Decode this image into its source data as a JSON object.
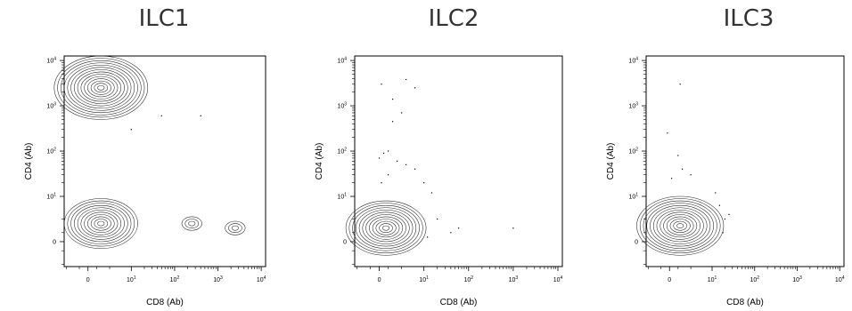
{
  "panels": [
    {
      "title": "ILC1",
      "xlabel": "CD8 (Ab)",
      "ylabel": "CD4 (Ab)"
    },
    {
      "title": "ILC2",
      "xlabel": "CD8 (Ab)",
      "ylabel": "CD4 (Ab)"
    },
    {
      "title": "ILC3",
      "xlabel": "CD8 (Ab)",
      "ylabel": "CD4 (Ab)"
    }
  ],
  "chart_data": [
    {
      "type": "contour",
      "title": "ILC1",
      "xlabel": "CD8 (Ab)",
      "ylabel": "CD4 (Ab)",
      "x_scale": "biexponential",
      "y_scale": "biexponential",
      "x_ticks": [
        "0",
        "10^1",
        "10^2",
        "10^3",
        "10^4"
      ],
      "y_ticks": [
        "0",
        "10^1",
        "10^2",
        "10^3",
        "10^4"
      ],
      "populations": [
        {
          "x": 3,
          "y": 2500,
          "rings": 14
        },
        {
          "x": 3,
          "y": 4,
          "rings": 11
        },
        {
          "x": 250,
          "y": 4,
          "rings": 3
        },
        {
          "x": 2500,
          "y": 3,
          "rings": 3
        }
      ],
      "outlier_points": [
        {
          "x": 10,
          "y": 300
        },
        {
          "x": 50,
          "y": 600
        },
        {
          "x": 400,
          "y": 600
        }
      ]
    },
    {
      "type": "contour",
      "title": "ILC2",
      "xlabel": "CD8 (Ab)",
      "ylabel": "CD4 (Ab)",
      "x_scale": "biexponential",
      "y_scale": "biexponential",
      "x_ticks": [
        "0",
        "10^1",
        "10^2",
        "10^3",
        "10^4"
      ],
      "y_ticks": [
        "0",
        "10^1",
        "10^2",
        "10^3",
        "10^4"
      ],
      "populations": [
        {
          "x": 1.5,
          "y": 3,
          "rings": 12
        }
      ],
      "outlier_points": [
        {
          "x": 0.5,
          "y": 3000
        },
        {
          "x": 6,
          "y": 3800
        },
        {
          "x": 8,
          "y": 2500
        },
        {
          "x": 3,
          "y": 1400
        },
        {
          "x": 5,
          "y": 700
        },
        {
          "x": 3,
          "y": 450
        },
        {
          "x": 0,
          "y": 70
        },
        {
          "x": 1,
          "y": 90
        },
        {
          "x": 2,
          "y": 100
        },
        {
          "x": 4,
          "y": 60
        },
        {
          "x": 6,
          "y": 50
        },
        {
          "x": 8,
          "y": 40
        },
        {
          "x": 2,
          "y": 30
        },
        {
          "x": 0.5,
          "y": 20
        },
        {
          "x": 10,
          "y": 20
        },
        {
          "x": 15,
          "y": 12
        },
        {
          "x": 20,
          "y": 5
        },
        {
          "x": 40,
          "y": 2
        },
        {
          "x": 60,
          "y": 3
        },
        {
          "x": 1000,
          "y": 3
        },
        {
          "x": 12,
          "y": 1
        }
      ]
    },
    {
      "type": "contour",
      "title": "ILC3",
      "xlabel": "CD8 (Ab)",
      "ylabel": "CD4 (Ab)",
      "x_scale": "biexponential",
      "y_scale": "biexponential",
      "x_ticks": [
        "0",
        "10^1",
        "10^2",
        "10^3",
        "10^4"
      ],
      "y_ticks": [
        "0",
        "10^1",
        "10^2",
        "10^3",
        "10^4"
      ],
      "populations": [
        {
          "x": 2.5,
          "y": 3.5,
          "rings": 13
        }
      ],
      "outlier_points": [
        {
          "x": 2.5,
          "y": 3000
        },
        {
          "x": -0.5,
          "y": 250
        },
        {
          "x": 2,
          "y": 80
        },
        {
          "x": 3,
          "y": 40
        },
        {
          "x": 0.5,
          "y": 25
        },
        {
          "x": 5,
          "y": 30
        },
        {
          "x": 12,
          "y": 12
        },
        {
          "x": 15,
          "y": 8
        },
        {
          "x": 20,
          "y": 5
        },
        {
          "x": 18,
          "y": 2
        },
        {
          "x": 25,
          "y": 6
        }
      ]
    }
  ]
}
